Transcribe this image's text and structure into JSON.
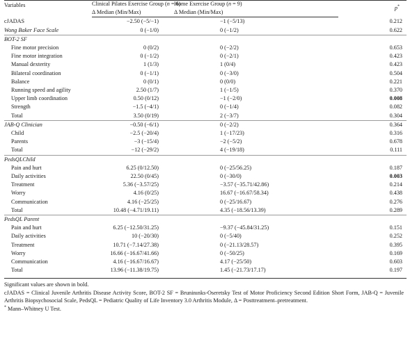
{
  "header": {
    "col_variables": "Variables",
    "col_pilates_line1": "Clinical Pilates Exercise Group (n = 6)",
    "col_pilates_line2": "Δ Median (Min/Max)",
    "col_home_line1": "Home Exercise Group (n = 9)",
    "col_home_line2": "Δ Median (Min/Max)",
    "col_p": "p"
  },
  "rows": [
    {
      "label": "cJADAS",
      "pilates": "−2.50 (−5/−1)",
      "home": "−1 (−5/13)",
      "p": "0.212"
    },
    {
      "label": "Wong Baker Face Scale",
      "pilates": "0 (−1/0)",
      "home": "0 (−1/2)",
      "p": "0.622"
    },
    {
      "label": "BOT-2 SF"
    },
    {
      "label": "Fine motor precision",
      "pilates": "0 (0/2)",
      "home": "0 (−2/2)",
      "p": "0.653"
    },
    {
      "label": "Fine motor integration",
      "pilates": "0 (−1/2)",
      "home": "0 (−2/1)",
      "p": "0.423"
    },
    {
      "label": "Manual dexterity",
      "pilates": "1 (1/3)",
      "home": "1 (0/4)",
      "p": "0.423"
    },
    {
      "label": "Bilateral coordination",
      "pilates": "0 (−1/1)",
      "home": "0 (−3/0)",
      "p": "0.504"
    },
    {
      "label": "Balance",
      "pilates": "0 (0/1)",
      "home": "0 (0/0)",
      "p": "0.221"
    },
    {
      "label": "Running speed and agility",
      "pilates": "2.50 (1/7)",
      "home": "1 (−1/5)",
      "p": "0.370"
    },
    {
      "label": "Upper limb coordination",
      "pilates": "0.50 (0/12)",
      "home": "−1 (−2/0)",
      "p": "0.008"
    },
    {
      "label": "Strength",
      "pilates": "−1.5 (−4/1)",
      "home": "0 (−1/4)",
      "p": "0.082"
    },
    {
      "label": "Total",
      "pilates": "3.50 (0/19)",
      "home": "2 (−3/7)",
      "p": "0.304"
    },
    {
      "label": "JAB-Q Clinician",
      "pilates": "−0.50 (−6/1)",
      "home": "0 (−2/2)",
      "p": "0.364"
    },
    {
      "label": "Child",
      "pilates": "−2.5 (−20/4)",
      "home": "1 (−17/23)",
      "p": "0.316"
    },
    {
      "label": "Parents",
      "pilates": "−3 (−15/4)",
      "home": "−2 (−5/2)",
      "p": "0.678"
    },
    {
      "label": "Total",
      "pilates": "−12 (−29/2)",
      "home": "4 (−19/18)",
      "p": "0.111"
    },
    {
      "label": "PedsQLChild"
    },
    {
      "label": "Pain and hurt",
      "pilates": "6.25 (0/12.50)",
      "home": "0 (−25/56.25)",
      "p": "0.187"
    },
    {
      "label": "Daily activities",
      "pilates": "22.50 (0/45)",
      "home": "0 (−30/0)",
      "p": "0.003"
    },
    {
      "label": "Treatment",
      "pilates": "5.36 (−3.57/25)",
      "home": "−3.57 (−35.71/42.86)",
      "p": "0.214"
    },
    {
      "label": "Worry",
      "pilates": "4.16 (0/25)",
      "home": "16.67 (−16.67/58.34)",
      "p": "0.438"
    },
    {
      "label": "Communication",
      "pilates": "4.16 (−25/25)",
      "home": "0 (−25/16.67)",
      "p": "0.276"
    },
    {
      "label": "Total",
      "pilates": "10.48 (−4.71/19.11)",
      "home": "4.35 (−18.56/13.39)",
      "p": "0.289"
    },
    {
      "label": "PedsQL Parent"
    },
    {
      "label": "Pain and hurt",
      "pilates": "6.25 (−12.50/31.25)",
      "home": "−9.37 (−45.84/31.25)",
      "p": "0.151"
    },
    {
      "label": "Daily activities",
      "pilates": "10 (−20/30)",
      "home": "0 (−5/40)",
      "p": "0.252"
    },
    {
      "label": "Treatment",
      "pilates": "10.71 (−7.14/27.38)",
      "home": "0 (−21.13/28.57)",
      "p": "0.395"
    },
    {
      "label": "Worry",
      "pilates": "16.66 (−16.67/41.66)",
      "home": "0 (−50/25)",
      "p": "0.169"
    },
    {
      "label": "Communication",
      "pilates": "4.16 (−16.67/16.67)",
      "home": "4.17 (−25/50)",
      "p": "0.603"
    },
    {
      "label": "Total",
      "pilates": "13.96 (−11.38/19.75)",
      "home": "1.45 (−21.73/17.17)",
      "p": "0.197"
    }
  ],
  "notes": {
    "significance": "Significant values are shown in bold.",
    "abbreviations": "cJADAS = Clinical Juvenile Arthritis Disease Activity Score, BOT-2 SF = Bruninınks-Oseretsky Test of Motor Proficiency Second Edition Short Form, JAB-Q = Juvenile Arthritis Biopsychosocial Scale, PedsQL = Pediatric Quality of Life Inventory 3.0 Arthritis Module, Δ = Posttreatment–pretreatment.",
    "footnote_marker": "*",
    "footnote": "Mann–Whitney U Test."
  }
}
